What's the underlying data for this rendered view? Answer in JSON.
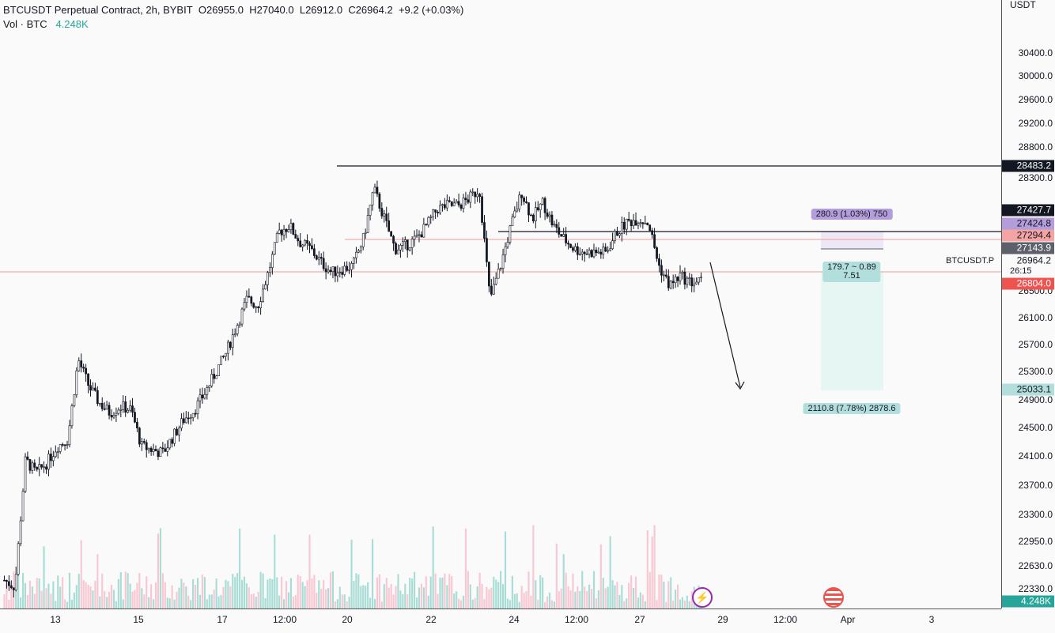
{
  "legend": {
    "symbol": "BTCUSDT Perpetual Contract, 2h, BYBIT",
    "open": "O26955.0",
    "high": "H27040.0",
    "low": "L26912.0",
    "close": "C26964.2",
    "change": "+9.2 (+0.03%)",
    "vol_label": "Vol · BTC",
    "vol_value": "4.248K"
  },
  "price_axis": {
    "currency": "USDT",
    "ticks": [
      "30400.0",
      "30000.0",
      "29600.0",
      "29200.0",
      "28800.0",
      "28300.0",
      "26500.0",
      "26100.0",
      "25700.0",
      "25300.0",
      "24900.0",
      "24500.0",
      "24100.0",
      "23700.0",
      "23300.0",
      "22950.0",
      "22630.0",
      "22330.0"
    ],
    "tags": [
      {
        "value": "28483.2",
        "bg": "#131722",
        "fg": "#ffffff"
      },
      {
        "value": "27427.7",
        "bg": "#131722",
        "fg": "#ffffff"
      },
      {
        "value": "27424.8",
        "bg": "#b39ddb",
        "fg": "#131722"
      },
      {
        "value": "27294.4",
        "bg": "#f5a3a3",
        "fg": "#131722"
      },
      {
        "value": "27143.9",
        "bg": "#5d606b",
        "fg": "#ffffff"
      },
      {
        "value": "26964.2",
        "bg": "#fafafa",
        "fg": "#131722"
      },
      {
        "value": "26804.0",
        "bg": "#ef5350",
        "fg": "#ffffff"
      },
      {
        "value": "25033.1",
        "bg": "#b2dfdb",
        "fg": "#131722"
      },
      {
        "value": "4.248K",
        "bg": "#26a69a",
        "fg": "#ffffff"
      }
    ],
    "countdown": "26:15"
  },
  "symbol_label": "BTCUSDT.P",
  "time_axis": [
    "13",
    "15",
    "17",
    "12:00",
    "20",
    "22",
    "24",
    "12:00",
    "27",
    "29",
    "12:00",
    "Apr",
    "3"
  ],
  "position_tool": {
    "stop_label": "280.9 (1.03%) 750",
    "entry_label_line1": "179.7 ~ 0.89",
    "entry_label_line2": "7.51",
    "target_label": "2110.8 (7.78%) 2878.6"
  },
  "colors": {
    "up": "#26a69a",
    "down": "#131722",
    "vol_up": "#a8ddd6",
    "vol_down": "#f8c7d2",
    "stop_zone": "#ede7f6",
    "target_zone": "#e6f6f3",
    "red_line": "#ef9a9a"
  },
  "icons": {
    "flash_badge": "lightning-icon",
    "flag_badge": "us-flag-icon"
  },
  "chart_data": {
    "type": "candlestick",
    "title": "BTCUSDT Perpetual Contract, 2h, BYBIT",
    "ylim": [
      22100,
      30700
    ],
    "ylabel": "USDT",
    "x_ticks": [
      "13",
      "15",
      "17",
      "12:00",
      "20",
      "22",
      "24",
      "12:00",
      "27",
      "29",
      "12:00",
      "Apr",
      "3"
    ],
    "horizontal_levels": [
      28483.2,
      27427.7,
      27294.4,
      26804.0
    ],
    "series": [
      {
        "name": "price",
        "close_path": [
          22500,
          22400,
          24300,
          24100,
          24250,
          24500,
          24600,
          25800,
          25400,
          25150,
          25000,
          25100,
          25050,
          24500,
          24450,
          24400,
          24650,
          24900,
          25050,
          25300,
          25600,
          25900,
          26300,
          26700,
          26600,
          27100,
          27700,
          27800,
          27550,
          27450,
          27250,
          27100,
          27150,
          27200,
          27600,
          28350,
          27900,
          27450,
          27500,
          27600,
          27800,
          28050,
          28100,
          28100,
          28200,
          28350,
          26700,
          27200,
          27800,
          28300,
          27900,
          28150,
          27800,
          27600,
          27450,
          27400,
          27400,
          27400,
          27700,
          27850,
          27900,
          27850,
          27200,
          26900,
          27050,
          26950,
          26964
        ]
      },
      {
        "name": "Vol · BTC",
        "last": "4.248K"
      }
    ]
  }
}
